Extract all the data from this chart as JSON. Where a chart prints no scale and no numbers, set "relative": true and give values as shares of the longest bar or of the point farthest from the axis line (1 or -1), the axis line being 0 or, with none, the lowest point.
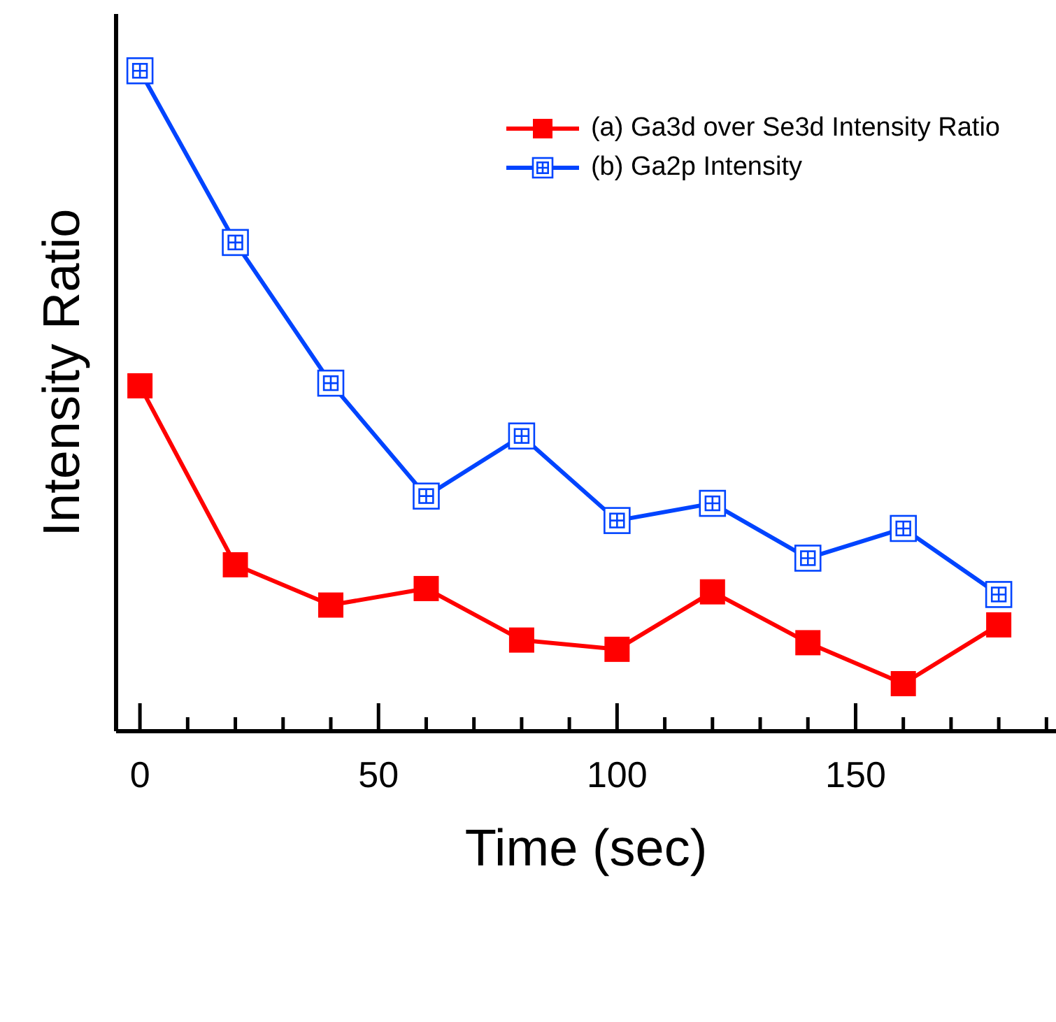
{
  "chart_data": {
    "type": "line",
    "relative": true,
    "xlabel": "Time (sec)",
    "ylabel": "Intensity Ratio",
    "x": [
      0,
      20,
      40,
      60,
      80,
      100,
      120,
      140,
      160,
      180
    ],
    "xlim": [
      -5,
      192
    ],
    "xticks": [
      0,
      {
        "value": 10,
        "label": null
      },
      {
        "value": 20,
        "label": null
      },
      {
        "value": 30,
        "label": null
      },
      {
        "value": 40,
        "label": null
      },
      50,
      {
        "value": 60,
        "label": null
      },
      {
        "value": 70,
        "label": null
      },
      {
        "value": 80,
        "label": null
      },
      {
        "value": 90,
        "label": null
      },
      100,
      {
        "value": 110,
        "label": null
      },
      {
        "value": 120,
        "label": null
      },
      {
        "value": 130,
        "label": null
      },
      {
        "value": 140,
        "label": null
      },
      150,
      {
        "value": 160,
        "label": null
      },
      {
        "value": 170,
        "label": null
      },
      {
        "value": 180,
        "label": null
      },
      {
        "value": 190,
        "label": null
      }
    ],
    "tick_labels": "x",
    "grid": false,
    "legend": "top right",
    "line_style": "solid",
    "marker": "square",
    "series": [
      {
        "name": "(a) Ga3d over Se3d Intensity Ratio",
        "color": "#ff0000",
        "values": [
          0.523,
          0.252,
          0.191,
          0.216,
          0.138,
          0.124,
          0.211,
          0.134,
          0.072,
          0.161
        ]
      },
      {
        "name": "(b) Ga2p Intensity",
        "color": "#0044ff",
        "values": [
          1,
          0.74,
          0.527,
          0.356,
          0.447,
          0.319,
          0.345,
          0.262,
          0.307,
          0.207
        ]
      }
    ]
  }
}
